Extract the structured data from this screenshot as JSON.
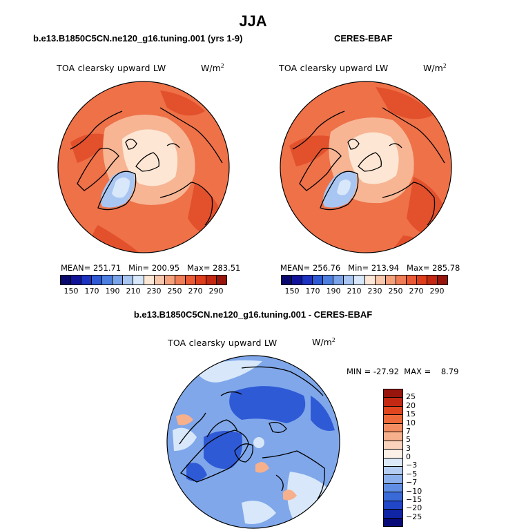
{
  "page": {
    "title": "JJA"
  },
  "panels": [
    {
      "title": "b.e13.B1850C5CN.ne120_g16.tuning.001 (yrs 1-9)",
      "variable": "TOA clearsky upward LW",
      "units": "W/m",
      "units_exp": "2",
      "stats": "MEAN= 251.71   Min= 200.95   Max= 283.51"
    },
    {
      "title": "CERES-EBAF",
      "variable": "TOA clearsky upward LW",
      "units": "W/m",
      "units_exp": "2",
      "stats": "MEAN= 256.76   Min= 213.94   Max= 285.78"
    },
    {
      "title": "b.e13.B1850C5CN.ne120_g16.tuning.001 - CERES-EBAF",
      "variable": "TOA clearsky upward LW",
      "units": "W/m",
      "units_exp": "2",
      "stats": "MIN = -27.92  MAX =    8.79"
    }
  ],
  "colorbar_abs": {
    "colors": [
      "#08086e",
      "#10129a",
      "#1c32c0",
      "#2f5ad6",
      "#4c7fe0",
      "#7aa3ea",
      "#a9c6f2",
      "#d8e8fa",
      "#fde8d8",
      "#f9c8ac",
      "#f5a27c",
      "#f07d55",
      "#eb5a34",
      "#de3e1c",
      "#c22812",
      "#97150c"
    ],
    "ticks": [
      "150",
      "170",
      "190",
      "210",
      "230",
      "250",
      "270",
      "290"
    ]
  },
  "colorbar_diff": {
    "colors": [
      "#97150c",
      "#c22812",
      "#e2461f",
      "#ef6a3a",
      "#f48e62",
      "#f7b08c",
      "#fbd3bc",
      "#fdf0e6",
      "#dce9f8",
      "#b5cdf2",
      "#8cb0ec",
      "#5f8ee4",
      "#3a6ad8",
      "#2146c8",
      "#1024a6",
      "#080a78"
    ],
    "ticks": [
      "25",
      "20",
      "15",
      "10",
      "7",
      "5",
      "3",
      "0",
      "−3",
      "−5",
      "−7",
      "−10",
      "−15",
      "−20",
      "−25"
    ]
  },
  "map_colors": {
    "ocean_base": "#ee7148",
    "ocean_dark": "#e2512c",
    "ice_mid": "#f7b594",
    "ice_center": "#fde6d4",
    "greenland_edge": "#a9c6f2",
    "greenland_core": "#d8e8fa",
    "diff_base": "#7fa7ea",
    "diff_dark": "#2f5ad6",
    "diff_light": "#d8e8fa",
    "diff_warm": "#f7b08c",
    "coast": "#000000"
  }
}
